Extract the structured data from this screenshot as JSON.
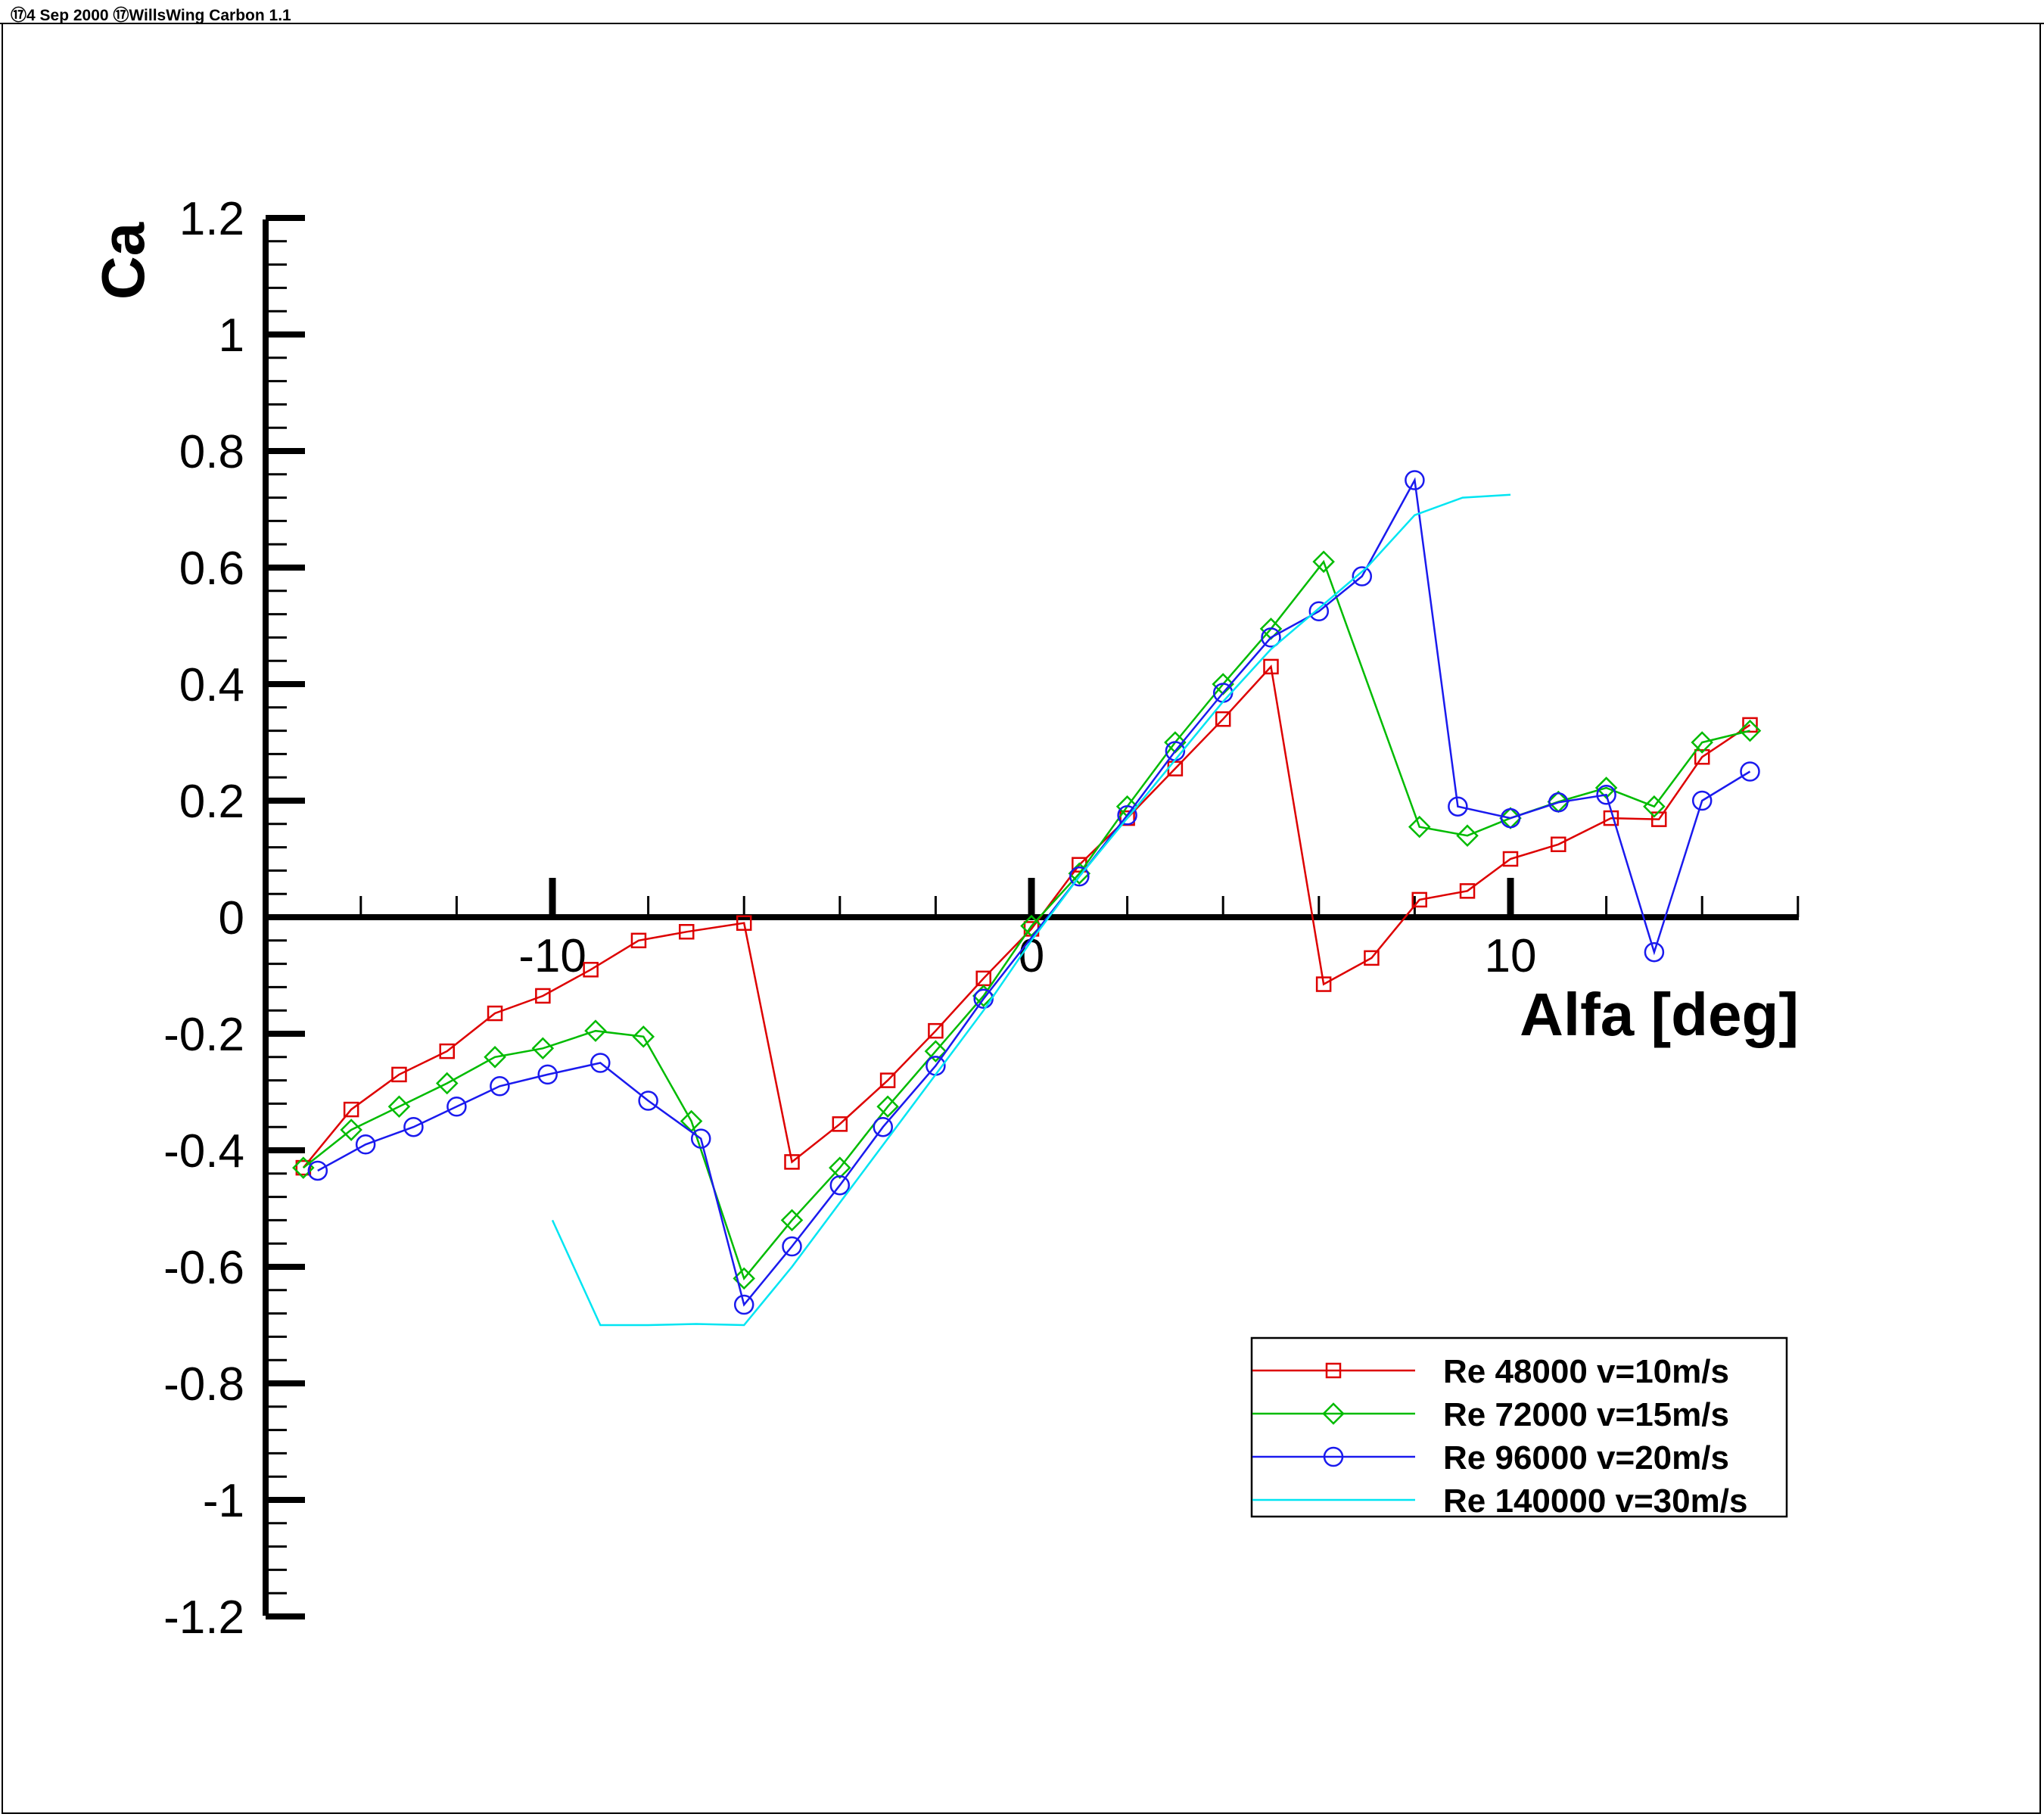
{
  "header": {
    "text": "⑰4 Sep 2000 ⑰WillsWing Carbon 1.1"
  },
  "chart_data": {
    "type": "line",
    "xlabel": "Alfa [deg]",
    "ylabel": "Ca",
    "xlim": [
      -16,
      16
    ],
    "ylim": [
      -1.2,
      1.2
    ],
    "x_ticks": [
      -10,
      0,
      10
    ],
    "x_tick_labels": [
      "-10",
      "0",
      "10"
    ],
    "y_ticks": [
      1.2,
      1,
      0.8,
      0.6,
      0.4,
      0.2,
      0,
      -0.2,
      -0.4,
      -0.6,
      -0.8,
      -1,
      -1.2
    ],
    "y_tick_labels": [
      "1.2",
      "1",
      "0.8",
      "0.6",
      "0.4",
      "0.2",
      "0",
      "-0.2",
      "-0.4",
      "-0.6",
      "-0.8",
      "-1",
      "-1.2"
    ],
    "grid": false,
    "legend_position": "bottom-right",
    "series": [
      {
        "name": "Re 48000 v=10m/s",
        "color": "#dd0000",
        "marker": "square",
        "x": [
          -15.2,
          -14.2,
          -13.2,
          -12.2,
          -11.2,
          -10.2,
          -9.2,
          -8.2,
          -7.2,
          -6.0,
          -5.0,
          -4.0,
          -3.0,
          -2.0,
          -1.0,
          0.0,
          1.0,
          2.0,
          3.0,
          4.0,
          5.0,
          6.1,
          7.1,
          8.1,
          9.1,
          10.0,
          11.0,
          12.1,
          13.1,
          14.0,
          15.0
        ],
        "y": [
          -0.43,
          -0.33,
          -0.27,
          -0.23,
          -0.165,
          -0.135,
          -0.09,
          -0.04,
          -0.025,
          -0.01,
          -0.42,
          -0.355,
          -0.28,
          -0.195,
          -0.105,
          -0.02,
          0.09,
          0.17,
          0.255,
          0.34,
          0.43,
          -0.115,
          -0.07,
          0.03,
          0.045,
          0.1,
          0.125,
          0.17,
          0.168,
          0.275,
          0.33
        ]
      },
      {
        "name": "Re 72000 v=15m/s",
        "color": "#00bb00",
        "marker": "diamond",
        "x": [
          -15.2,
          -14.2,
          -13.2,
          -12.2,
          -11.2,
          -10.2,
          -9.1,
          -8.1,
          -7.1,
          -6.0,
          -5.0,
          -4.0,
          -3.0,
          -2.0,
          -1.0,
          0.0,
          1.0,
          2.0,
          3.0,
          4.0,
          5.0,
          6.1,
          8.1,
          9.1,
          10.0,
          11.0,
          12.0,
          13.0,
          14.0,
          15.0
        ],
        "y": [
          -0.43,
          -0.365,
          -0.325,
          -0.285,
          -0.24,
          -0.225,
          -0.195,
          -0.205,
          -0.35,
          -0.62,
          -0.52,
          -0.43,
          -0.325,
          -0.23,
          -0.135,
          -0.015,
          0.075,
          0.19,
          0.3,
          0.4,
          0.495,
          0.61,
          0.155,
          0.14,
          0.17,
          0.198,
          0.222,
          0.19,
          0.3,
          0.32
        ]
      },
      {
        "name": "Re 96000 v=20m/s",
        "color": "#1a1aee",
        "marker": "circle",
        "x": [
          -14.9,
          -13.9,
          -12.9,
          -12.0,
          -11.1,
          -10.1,
          -9.0,
          -8.0,
          -6.9,
          -6.0,
          -5.0,
          -4.0,
          -3.1,
          -2.0,
          -1.0,
          1.0,
          2.0,
          3.0,
          4.0,
          5.0,
          6.0,
          6.9,
          8.0,
          8.9,
          10.0,
          11.0,
          12.0,
          13.0,
          14.0,
          15.0
        ],
        "y": [
          -0.435,
          -0.39,
          -0.36,
          -0.325,
          -0.29,
          -0.27,
          -0.25,
          -0.315,
          -0.38,
          -0.665,
          -0.565,
          -0.46,
          -0.36,
          -0.255,
          -0.14,
          0.07,
          0.175,
          0.285,
          0.385,
          0.48,
          0.525,
          0.585,
          0.75,
          0.19,
          0.17,
          0.197,
          0.21,
          -0.06,
          0.2,
          0.25
        ]
      },
      {
        "name": "Re 140000 v=30m/s",
        "color": "#00e5f2",
        "marker": "none",
        "x": [
          -10.0,
          -9.0,
          -8.0,
          -7.0,
          -6.0,
          -5.0,
          -4.0,
          -3.0,
          -2.0,
          -1.0,
          0.0,
          1.0,
          2.0,
          3.0,
          4.0,
          5.0,
          6.0,
          7.0,
          8.0,
          9.0,
          10.0
        ],
        "y": [
          -0.52,
          -0.7,
          -0.7,
          -0.698,
          -0.7,
          -0.6,
          -0.49,
          -0.38,
          -0.27,
          -0.16,
          -0.04,
          0.07,
          0.17,
          0.27,
          0.37,
          0.46,
          0.53,
          0.6,
          0.69,
          0.72,
          0.725
        ]
      }
    ]
  }
}
